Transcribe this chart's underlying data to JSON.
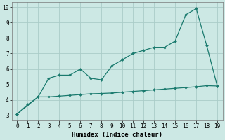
{
  "xlabel": "Humidex (Indice chaleur)",
  "x": [
    0,
    1,
    2,
    3,
    4,
    5,
    6,
    7,
    8,
    9,
    10,
    11,
    12,
    13,
    14,
    15,
    16,
    17,
    18,
    19
  ],
  "line1": [
    3.1,
    3.7,
    4.2,
    5.4,
    5.6,
    5.6,
    6.0,
    5.4,
    5.3,
    6.2,
    6.6,
    7.0,
    7.2,
    7.4,
    7.4,
    7.8,
    9.5,
    9.9,
    7.5,
    4.9
  ],
  "line2_x": [
    0,
    2,
    3,
    4,
    5,
    6,
    7,
    8,
    9,
    10,
    11,
    12,
    13,
    14,
    15,
    16,
    17,
    18,
    19
  ],
  "line2_y": [
    3.1,
    4.2,
    4.2,
    4.25,
    4.3,
    4.35,
    4.4,
    4.42,
    4.45,
    4.5,
    4.55,
    4.6,
    4.65,
    4.7,
    4.75,
    4.8,
    4.85,
    4.92,
    4.9
  ],
  "line_color": "#1a7a6e",
  "bg_color": "#cce8e4",
  "grid_color": "#aaccc8",
  "ylim": [
    2.7,
    10.3
  ],
  "xlim": [
    -0.5,
    19.5
  ],
  "yticks": [
    3,
    4,
    5,
    6,
    7,
    8,
    9,
    10
  ],
  "xticks": [
    0,
    1,
    2,
    3,
    4,
    5,
    6,
    7,
    8,
    9,
    10,
    11,
    12,
    13,
    14,
    15,
    16,
    17,
    18,
    19
  ],
  "tick_fontsize": 5.5,
  "xlabel_fontsize": 6.5
}
